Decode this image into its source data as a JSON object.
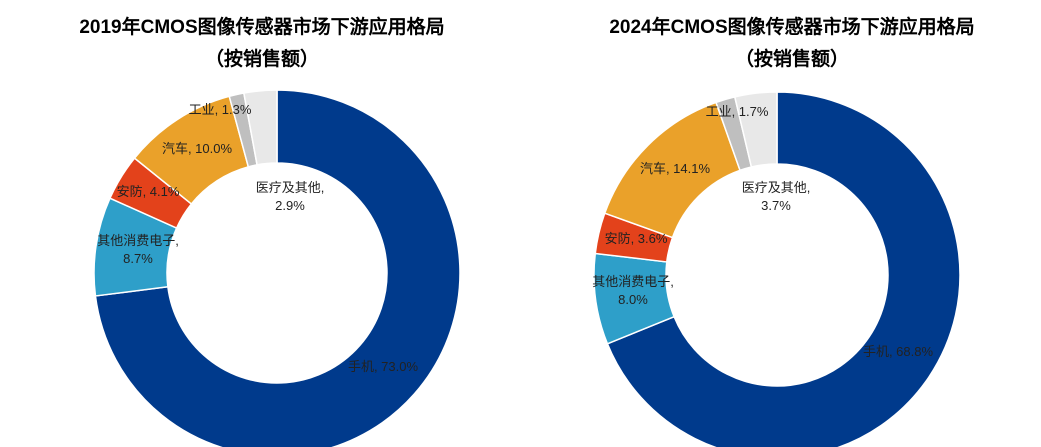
{
  "chart_data": [
    {
      "type": "donut",
      "title": "2019年CMOS图像传感器市场下游应用格局",
      "subtitle": "（按销售额）",
      "values": [
        73.0,
        8.7,
        4.1,
        10.0,
        1.3,
        2.9
      ],
      "value_labels": [
        "手机, 73.0%",
        "其他消费电子,\n8.7%",
        "安防, 4.1%",
        "汽车, 10.0%",
        "工业, 1.3%",
        "医疗及其他,\n2.9%"
      ],
      "colors": [
        "#003a8c",
        "#2e9fc9",
        "#e3421b",
        "#eaa12a",
        "#bfbfbf",
        "#e8e8e8"
      ]
    },
    {
      "type": "donut",
      "title": "2024年CMOS图像传感器市场下游应用格局",
      "subtitle": "（按销售额）",
      "values": [
        68.8,
        8.0,
        3.6,
        14.1,
        1.7,
        3.7
      ],
      "value_labels": [
        "手机, 68.8%",
        "其他消费电子,\n8.0%",
        "安防, 3.6%",
        "汽车, 14.1%",
        "工业, 1.7%",
        "医疗及其他,\n3.7%"
      ],
      "colors": [
        "#003a8c",
        "#2e9fc9",
        "#e3421b",
        "#eaa12a",
        "#bfbfbf",
        "#e8e8e8"
      ]
    }
  ]
}
